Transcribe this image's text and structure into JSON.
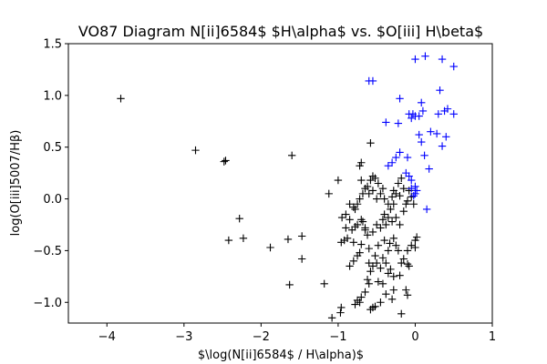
{
  "chart_data": {
    "type": "scatter",
    "title": "VO87 Diagram N[ii]6584$ $H\\alpha$ vs. $O[iii] H\\beta$",
    "xlabel": "$\\log(N[ii]6584$ / H\\alpha)$",
    "ylabel": "log(O[iii]5007/Hβ)",
    "xlim": [
      -4.5,
      1
    ],
    "ylim": [
      -1.2,
      1.5
    ],
    "xticks": [
      "−4",
      "−3",
      "−2",
      "−1",
      "0",
      "1"
    ],
    "xtick_values": [
      -4,
      -3,
      -2,
      -1,
      0,
      1
    ],
    "yticks": [
      "−1.0",
      "−0.5",
      "0.0",
      "0.5",
      "1.0",
      "1.5"
    ],
    "ytick_values": [
      -1.0,
      -0.5,
      0.0,
      0.5,
      1.0,
      1.5
    ],
    "grid": false,
    "marker": "+",
    "series": [
      {
        "color": "#000000",
        "points": [
          [
            -3.82,
            0.97
          ],
          [
            -2.85,
            0.47
          ],
          [
            -2.48,
            0.36
          ],
          [
            -2.46,
            0.37
          ],
          [
            -1.6,
            0.42
          ],
          [
            -2.28,
            -0.19
          ],
          [
            -2.42,
            -0.4
          ],
          [
            -2.23,
            -0.38
          ],
          [
            -1.88,
            -0.47
          ],
          [
            -1.65,
            -0.39
          ],
          [
            -1.47,
            -0.36
          ],
          [
            -1.47,
            -0.58
          ],
          [
            -1.63,
            -0.83
          ],
          [
            -1.18,
            -0.82
          ],
          [
            -1.08,
            -1.15
          ],
          [
            -0.97,
            -1.1
          ],
          [
            -0.96,
            -1.05
          ],
          [
            -0.78,
            -1.02
          ],
          [
            -0.75,
            -0.98
          ],
          [
            -0.72,
            -1.0
          ],
          [
            -0.58,
            -1.07
          ],
          [
            -0.55,
            -1.05
          ],
          [
            -0.52,
            -1.04
          ],
          [
            -0.45,
            -1.0
          ],
          [
            -0.3,
            -0.97
          ],
          [
            -0.18,
            -1.11
          ],
          [
            -0.1,
            -0.93
          ],
          [
            -0.12,
            -0.88
          ],
          [
            -0.28,
            -0.88
          ],
          [
            -0.42,
            -0.82
          ],
          [
            -0.6,
            -0.82
          ],
          [
            -0.62,
            -0.78
          ],
          [
            -0.58,
            -0.7
          ],
          [
            -0.55,
            -0.65
          ],
          [
            -0.5,
            -0.62
          ],
          [
            -0.45,
            -0.67
          ],
          [
            -0.42,
            -0.57
          ],
          [
            -0.35,
            -0.72
          ],
          [
            -0.32,
            -0.68
          ],
          [
            -0.28,
            -0.75
          ],
          [
            -0.2,
            -0.74
          ],
          [
            -0.1,
            -0.63
          ],
          [
            -0.08,
            -0.65
          ],
          [
            -0.85,
            -0.65
          ],
          [
            -0.8,
            -0.6
          ],
          [
            -0.75,
            -0.55
          ],
          [
            -0.72,
            -0.52
          ],
          [
            -0.7,
            -0.44
          ],
          [
            -0.8,
            -0.42
          ],
          [
            -0.92,
            -0.4
          ],
          [
            -0.96,
            -0.42
          ],
          [
            -0.88,
            -0.38
          ],
          [
            -0.65,
            -0.3
          ],
          [
            -0.6,
            -0.48
          ],
          [
            -0.52,
            -0.55
          ],
          [
            -0.48,
            -0.45
          ],
          [
            -0.4,
            -0.4
          ],
          [
            -0.35,
            -0.5
          ],
          [
            -0.33,
            -0.43
          ],
          [
            -0.28,
            -0.38
          ],
          [
            -0.25,
            -0.45
          ],
          [
            -0.22,
            -0.5
          ],
          [
            -0.18,
            -0.62
          ],
          [
            -0.15,
            -0.58
          ],
          [
            -0.1,
            -0.5
          ],
          [
            -0.05,
            -0.45
          ],
          [
            0.0,
            -0.4
          ],
          [
            0.02,
            -0.37
          ],
          [
            0.0,
            -0.47
          ],
          [
            -0.82,
            -0.3
          ],
          [
            -0.78,
            -0.27
          ],
          [
            -0.75,
            -0.25
          ],
          [
            -0.7,
            -0.2
          ],
          [
            -0.68,
            -0.22
          ],
          [
            -0.65,
            -0.28
          ],
          [
            -0.62,
            -0.35
          ],
          [
            -0.55,
            -0.32
          ],
          [
            -0.5,
            -0.25
          ],
          [
            -0.45,
            -0.28
          ],
          [
            -0.42,
            -0.2
          ],
          [
            -0.4,
            -0.15
          ],
          [
            -0.38,
            -0.25
          ],
          [
            -0.35,
            -0.18
          ],
          [
            -0.3,
            -0.22
          ],
          [
            -0.25,
            -0.18
          ],
          [
            -0.2,
            -0.25
          ],
          [
            -0.15,
            -0.12
          ],
          [
            -0.12,
            -0.05
          ],
          [
            -0.1,
            -0.02
          ],
          [
            -0.05,
            0.02
          ],
          [
            -0.02,
            -0.05
          ],
          [
            -0.2,
            0.03
          ],
          [
            -0.25,
            0.05
          ],
          [
            -0.3,
            0.02
          ],
          [
            -0.35,
            -0.05
          ],
          [
            -0.4,
            0.0
          ],
          [
            -0.45,
            0.05
          ],
          [
            -0.5,
            0.0
          ],
          [
            -0.55,
            0.08
          ],
          [
            -0.6,
            0.05
          ],
          [
            -0.62,
            0.12
          ],
          [
            -0.58,
            0.18
          ],
          [
            -0.55,
            0.22
          ],
          [
            -0.52,
            0.2
          ],
          [
            -0.48,
            0.15
          ],
          [
            -0.42,
            0.1
          ],
          [
            -0.72,
            0.0
          ],
          [
            -0.75,
            -0.05
          ],
          [
            -0.78,
            -0.1
          ],
          [
            -0.85,
            -0.05
          ],
          [
            -0.9,
            -0.15
          ],
          [
            -0.95,
            -0.18
          ],
          [
            -0.68,
            0.05
          ],
          [
            -0.65,
            0.1
          ],
          [
            -0.7,
            0.18
          ],
          [
            -0.72,
            0.32
          ],
          [
            -0.7,
            0.35
          ],
          [
            -0.58,
            0.54
          ],
          [
            -1.0,
            0.18
          ],
          [
            -1.12,
            0.05
          ],
          [
            -0.28,
            0.08
          ],
          [
            -0.22,
            0.15
          ],
          [
            -0.18,
            0.2
          ],
          [
            -0.15,
            0.1
          ],
          [
            -0.08,
            0.08
          ],
          [
            -0.32,
            -0.1
          ],
          [
            -0.28,
            -0.05
          ],
          [
            -0.85,
            -0.2
          ],
          [
            -0.8,
            -0.08
          ],
          [
            -0.9,
            -0.28
          ],
          [
            -0.6,
            -0.62
          ],
          [
            -0.38,
            -0.62
          ],
          [
            -0.48,
            -0.8
          ],
          [
            -0.65,
            -0.9
          ],
          [
            -0.7,
            -0.95
          ],
          [
            -0.38,
            -0.92
          ]
        ]
      },
      {
        "color": "#0000ff",
        "points": [
          [
            -0.6,
            1.14
          ],
          [
            -0.55,
            1.14
          ],
          [
            0.0,
            1.35
          ],
          [
            0.13,
            1.38
          ],
          [
            0.35,
            1.35
          ],
          [
            0.5,
            1.28
          ],
          [
            -0.2,
            0.97
          ],
          [
            0.08,
            0.93
          ],
          [
            0.32,
            1.05
          ],
          [
            -0.03,
            0.82
          ],
          [
            0.0,
            0.8
          ],
          [
            -0.05,
            0.78
          ],
          [
            0.05,
            0.8
          ],
          [
            0.1,
            0.85
          ],
          [
            0.3,
            0.82
          ],
          [
            0.38,
            0.85
          ],
          [
            0.42,
            0.87
          ],
          [
            0.5,
            0.82
          ],
          [
            -0.38,
            0.74
          ],
          [
            -0.22,
            0.73
          ],
          [
            -0.08,
            0.82
          ],
          [
            0.2,
            0.65
          ],
          [
            0.28,
            0.63
          ],
          [
            0.4,
            0.6
          ],
          [
            0.05,
            0.62
          ],
          [
            0.08,
            0.55
          ],
          [
            0.35,
            0.51
          ],
          [
            -0.2,
            0.45
          ],
          [
            -0.1,
            0.4
          ],
          [
            0.12,
            0.42
          ],
          [
            -0.25,
            0.4
          ],
          [
            -0.3,
            0.35
          ],
          [
            0.18,
            0.29
          ],
          [
            -0.12,
            0.25
          ],
          [
            -0.08,
            0.22
          ],
          [
            -0.05,
            0.18
          ],
          [
            0.0,
            0.12
          ],
          [
            -0.05,
            0.1
          ],
          [
            0.02,
            0.08
          ],
          [
            0.0,
            0.05
          ],
          [
            -0.02,
            0.03
          ],
          [
            0.15,
            -0.1
          ],
          [
            -0.35,
            0.32
          ]
        ]
      }
    ]
  }
}
